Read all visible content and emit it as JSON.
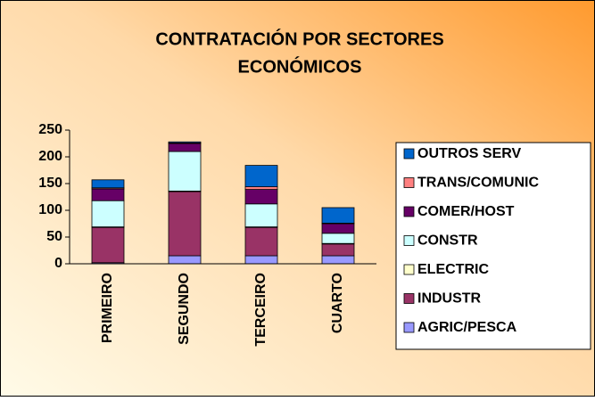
{
  "chart_data": {
    "type": "stacked_bar",
    "title": [
      "CONTRATACIÓN POR SECTORES",
      "ECONÓMICOS"
    ],
    "categories": [
      "PRIMEIRO",
      "SEGUNDO",
      "TERCEIRO",
      "CUARTO"
    ],
    "series": [
      {
        "name": "AGRIC/PESCA",
        "color": "#9999ff",
        "values": [
          2,
          15,
          15,
          15
        ]
      },
      {
        "name": "INDUSTR",
        "color": "#993366",
        "values": [
          66,
          120,
          53,
          22
        ]
      },
      {
        "name": "ELECTRIC",
        "color": "#ffffcc",
        "values": [
          1,
          1,
          1,
          1
        ]
      },
      {
        "name": "CONSTR",
        "color": "#ccffff",
        "values": [
          49,
          74,
          43,
          19
        ]
      },
      {
        "name": "COMER/HOST",
        "color": "#660066",
        "values": [
          22,
          15,
          27,
          18
        ]
      },
      {
        "name": "TRANS/COMUNIC",
        "color": "#ff8080",
        "values": [
          2,
          1,
          5,
          1
        ]
      },
      {
        "name": "OUTROS SERV",
        "color": "#0066cc",
        "values": [
          15,
          2,
          40,
          29
        ]
      }
    ],
    "ylim": [
      0,
      250
    ],
    "yticks": [
      0,
      50,
      100,
      150,
      200,
      250
    ],
    "grid": false,
    "legend": "right"
  }
}
